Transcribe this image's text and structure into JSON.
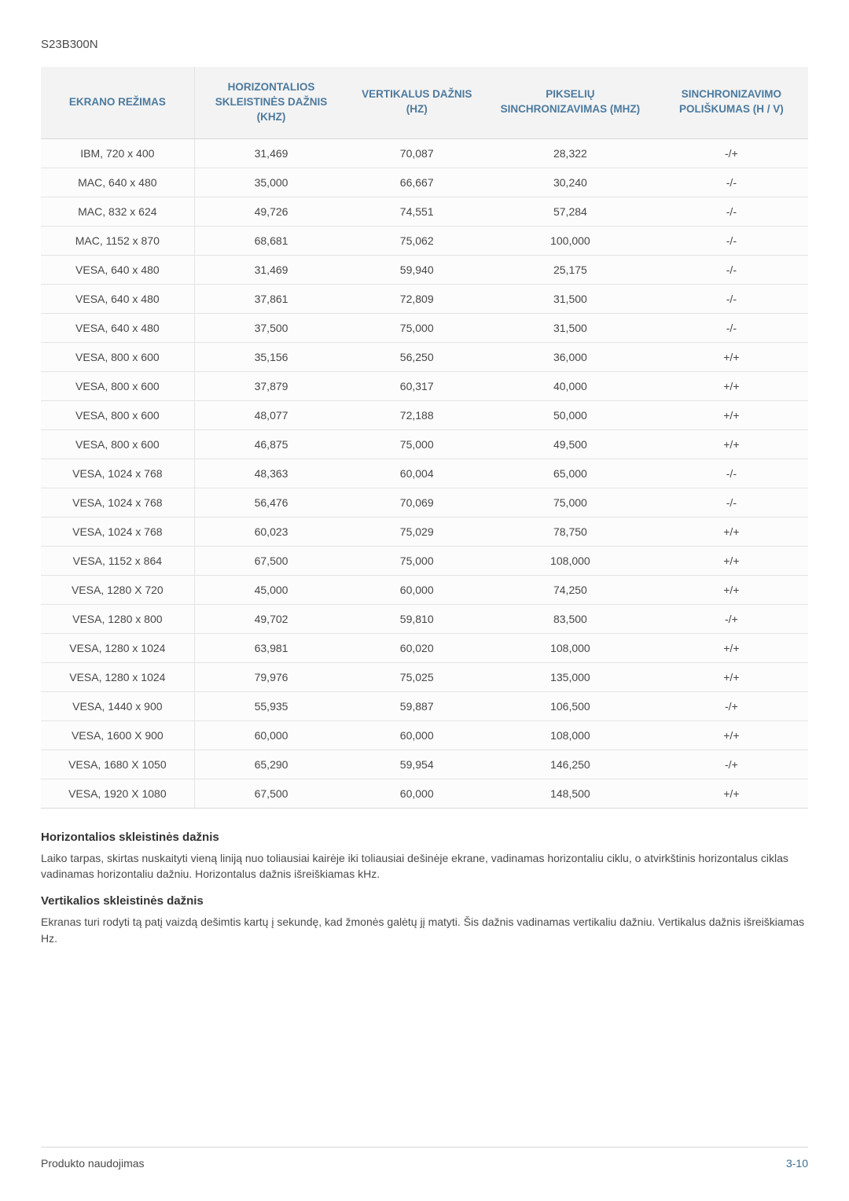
{
  "model": "S23B300N",
  "table": {
    "headers": [
      "EKRANO REŽIMAS",
      "HORIZONTALIOS SKLEISTINĖS DAŽNIS (KHZ)",
      "VERTIKALUS DAŽNIS (HZ)",
      "PIKSELIŲ SINCHRONIZAVIMAS (MHZ)",
      "SINCHRONIZAVIMO POLIŠKUMAS (H / V)"
    ],
    "rows": [
      [
        "IBM, 720 x 400",
        "31,469",
        "70,087",
        "28,322",
        "-/+"
      ],
      [
        "MAC, 640 x 480",
        "35,000",
        "66,667",
        "30,240",
        "-/-"
      ],
      [
        "MAC, 832 x 624",
        "49,726",
        "74,551",
        "57,284",
        "-/-"
      ],
      [
        "MAC, 1152 x 870",
        "68,681",
        "75,062",
        "100,000",
        "-/-"
      ],
      [
        "VESA, 640 x 480",
        "31,469",
        "59,940",
        "25,175",
        "-/-"
      ],
      [
        "VESA, 640 x 480",
        "37,861",
        "72,809",
        "31,500",
        "-/-"
      ],
      [
        "VESA, 640 x 480",
        "37,500",
        "75,000",
        "31,500",
        "-/-"
      ],
      [
        "VESA, 800 x 600",
        "35,156",
        "56,250",
        "36,000",
        "+/+"
      ],
      [
        "VESA, 800 x 600",
        "37,879",
        "60,317",
        "40,000",
        "+/+"
      ],
      [
        "VESA, 800 x 600",
        "48,077",
        "72,188",
        "50,000",
        "+/+"
      ],
      [
        "VESA, 800 x 600",
        "46,875",
        "75,000",
        "49,500",
        "+/+"
      ],
      [
        "VESA, 1024 x 768",
        "48,363",
        "60,004",
        "65,000",
        "-/-"
      ],
      [
        "VESA, 1024 x 768",
        "56,476",
        "70,069",
        "75,000",
        "-/-"
      ],
      [
        "VESA, 1024 x 768",
        "60,023",
        "75,029",
        "78,750",
        "+/+"
      ],
      [
        "VESA, 1152 x 864",
        "67,500",
        "75,000",
        "108,000",
        "+/+"
      ],
      [
        "VESA, 1280 X 720",
        "45,000",
        "60,000",
        "74,250",
        "+/+"
      ],
      [
        "VESA, 1280 x 800",
        "49,702",
        "59,810",
        "83,500",
        "-/+"
      ],
      [
        "VESA, 1280 x 1024",
        "63,981",
        "60,020",
        "108,000",
        "+/+"
      ],
      [
        "VESA, 1280 x 1024",
        "79,976",
        "75,025",
        "135,000",
        "+/+"
      ],
      [
        "VESA, 1440 x 900",
        "55,935",
        "59,887",
        "106,500",
        "-/+"
      ],
      [
        "VESA, 1600 X 900",
        "60,000",
        "60,000",
        "108,000",
        "+/+"
      ],
      [
        "VESA, 1680 X 1050",
        "65,290",
        "59,954",
        "146,250",
        "-/+"
      ],
      [
        "VESA, 1920 X 1080",
        "67,500",
        "60,000",
        "148,500",
        "+/+"
      ]
    ]
  },
  "sections": [
    {
      "title": "Horizontalios skleistinės dažnis",
      "body": "Laiko tarpas, skirtas nuskaityti vieną liniją nuo toliausiai kairėje iki toliausiai dešinėje ekrane, vadinamas horizontaliu ciklu, o atvirkštinis horizontalus ciklas vadinamas horizontaliu dažniu. Horizontalus dažnis išreiškiamas kHz."
    },
    {
      "title": "Vertikalios skleistinės dažnis",
      "body": "Ekranas turi rodyti tą patį vaizdą dešimtis kartų į sekundę, kad žmonės galėtų jį matyti. Šis dažnis vadinamas vertikaliu dažniu. Vertikalus dažnis išreiškiamas Hz."
    }
  ],
  "footer": {
    "left": "Produkto naudojimas",
    "right": "3-10"
  },
  "style": {
    "header_text_color": "#4c7a9e",
    "header_bg": "#f3f3f3",
    "row_border": "#e4e4e4",
    "body_text": "#474747",
    "page_bg": "#ffffff"
  }
}
